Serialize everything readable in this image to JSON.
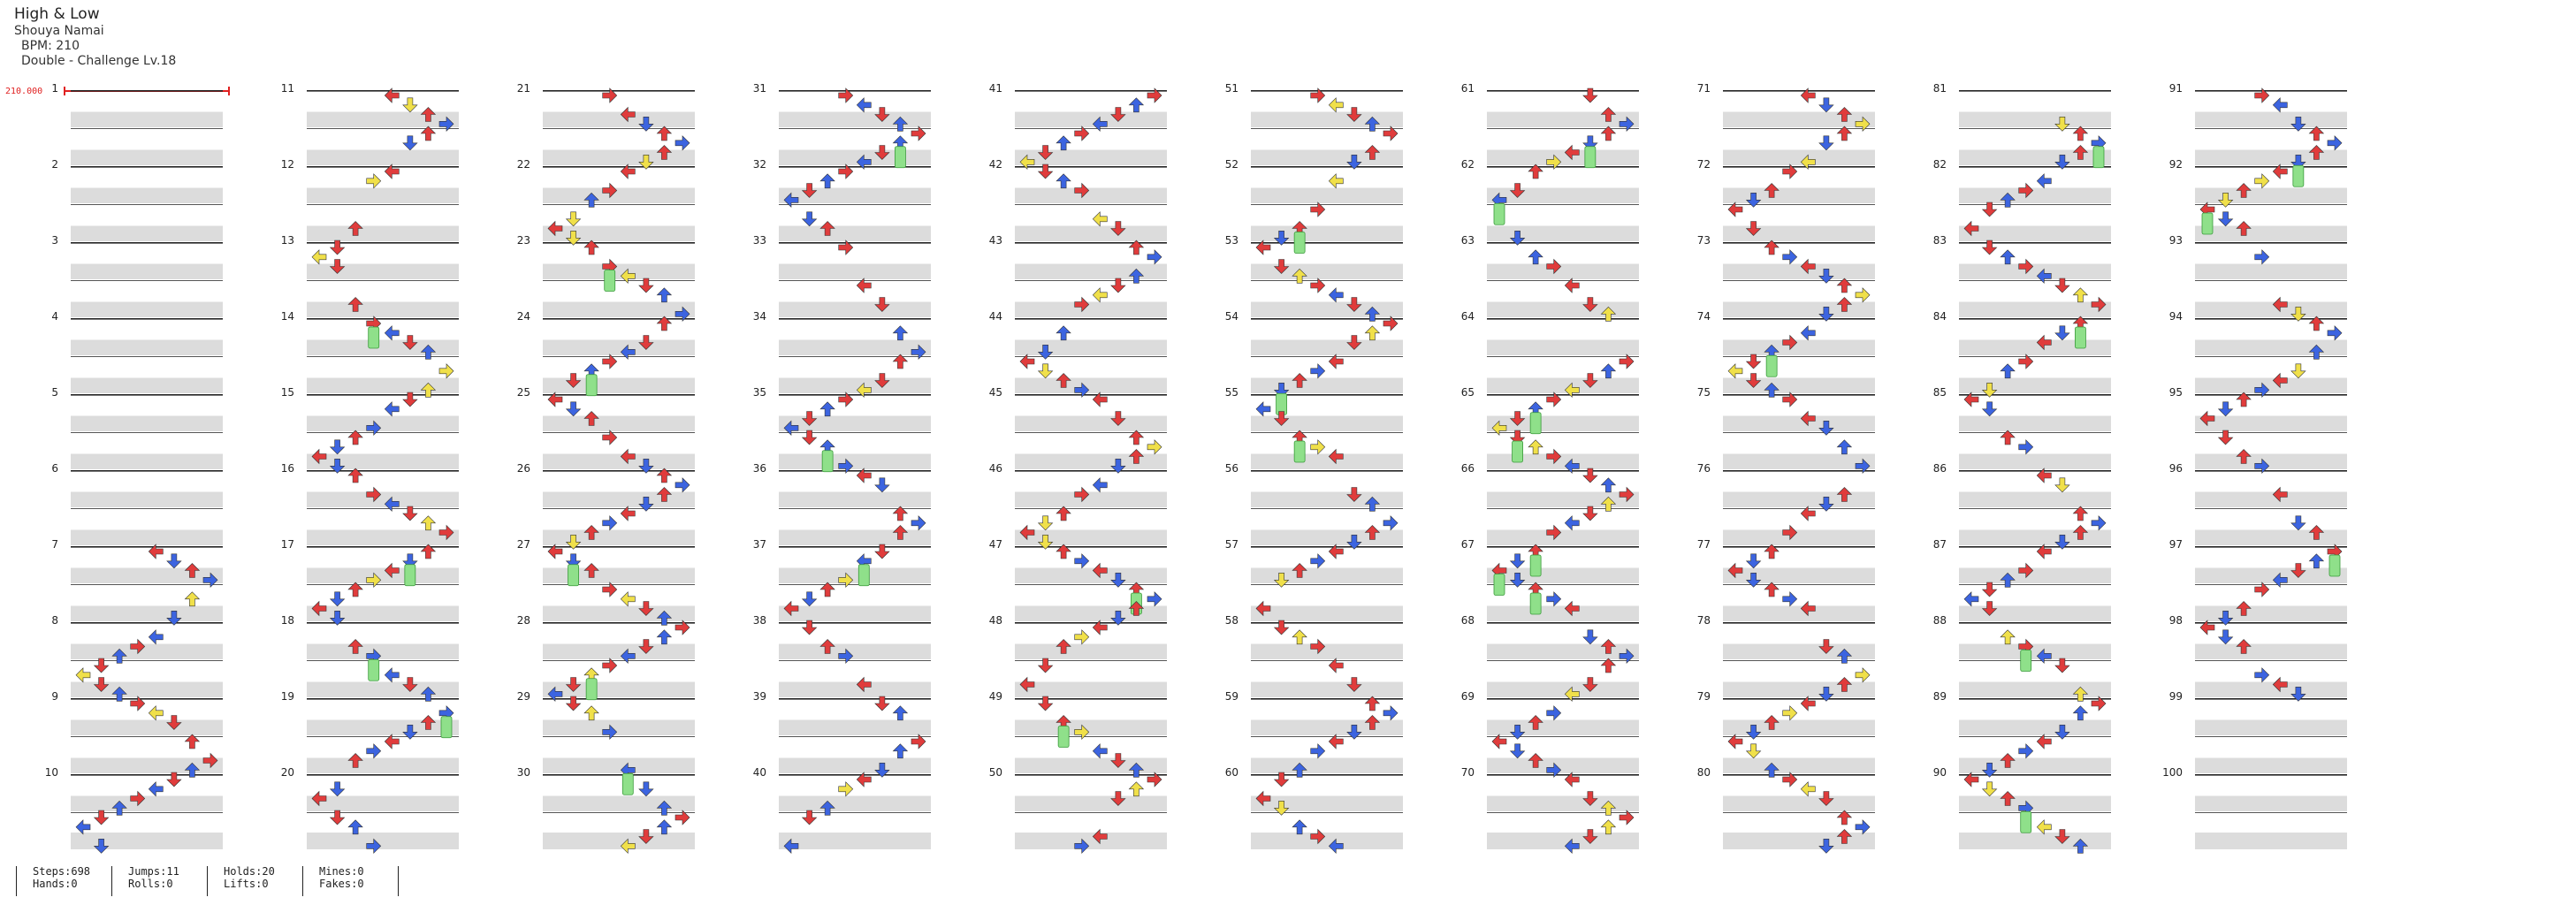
{
  "song": {
    "title": "High & Low",
    "artist": "Shouya Namai",
    "bpm_text": "BPM: 210",
    "chart_text": "Double - Challenge  Lv.18"
  },
  "bpm_marker": "210.000",
  "measure_labels": [
    "1",
    "2",
    "3",
    "4",
    "5",
    "6",
    "7",
    "8",
    "9",
    "10",
    "11",
    "12",
    "13",
    "14",
    "15",
    "16",
    "17",
    "18",
    "19",
    "20",
    "21",
    "22",
    "23",
    "24",
    "25",
    "26",
    "27",
    "28",
    "29",
    "30",
    "31",
    "32",
    "33",
    "34",
    "35",
    "36",
    "37",
    "38",
    "39",
    "40",
    "41",
    "42",
    "43",
    "44",
    "45",
    "46",
    "47",
    "48",
    "49",
    "50",
    "51",
    "52",
    "53",
    "54",
    "55",
    "56",
    "57",
    "58",
    "59",
    "60",
    "61",
    "62",
    "63",
    "64",
    "65",
    "66",
    "67",
    "68",
    "69",
    "70",
    "71",
    "72",
    "73",
    "74",
    "75",
    "76",
    "77",
    "78",
    "79",
    "80",
    "81",
    "82",
    "83",
    "84",
    "85",
    "86",
    "87",
    "88",
    "89",
    "90",
    "91",
    "92",
    "93",
    "94",
    "95",
    "96",
    "97",
    "98",
    "99",
    "100"
  ],
  "colors": {
    "quarter": "#e03c3c",
    "eighth": "#3c64e0",
    "sixteenth": "#f0e04a",
    "hold": "#8fe08a",
    "band": "#dcdcdc",
    "line": "#222222"
  },
  "stats": {
    "steps": "Steps:698",
    "hands": "Hands:0",
    "jumps": "Jumps:11",
    "rolls": "Rolls:0",
    "holds": "Holds:20",
    "lifts": "Lifts:0",
    "mines": "Mines:0",
    "fakes": "Fakes:0"
  }
}
